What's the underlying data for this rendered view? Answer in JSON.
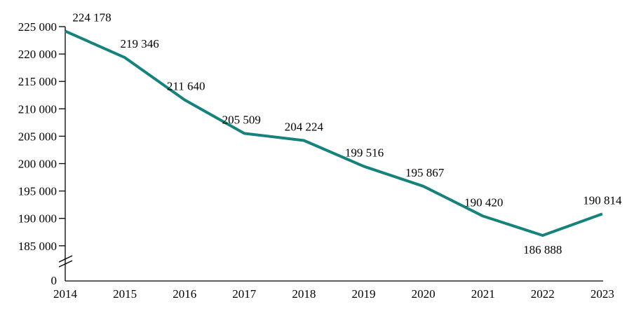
{
  "chart_data": {
    "type": "line",
    "title": "",
    "xlabel": "",
    "ylabel": "",
    "categories": [
      "2014",
      "2015",
      "2016",
      "2017",
      "2018",
      "2019",
      "2020",
      "2021",
      "2022",
      "2023"
    ],
    "values": [
      224178,
      219346,
      211640,
      205509,
      204224,
      199516,
      195867,
      190420,
      186888,
      190814
    ],
    "points": [
      {
        "x": "2014",
        "value": 224178,
        "label": "224 178",
        "label_pos": "above"
      },
      {
        "x": "2015",
        "value": 219346,
        "label": "219 346",
        "label_pos": "above"
      },
      {
        "x": "2016",
        "value": 211640,
        "label": "211 640",
        "label_pos": "above"
      },
      {
        "x": "2017",
        "value": 205509,
        "label": "205 509",
        "label_pos": "above"
      },
      {
        "x": "2018",
        "value": 204224,
        "label": "204 224",
        "label_pos": "above"
      },
      {
        "x": "2019",
        "value": 199516,
        "label": "199 516",
        "label_pos": "above"
      },
      {
        "x": "2020",
        "value": 195867,
        "label": "195 867",
        "label_pos": "above"
      },
      {
        "x": "2021",
        "value": 190420,
        "label": "190 420",
        "label_pos": "above"
      },
      {
        "x": "2022",
        "value": 186888,
        "label": "186 888",
        "label_pos": "below"
      },
      {
        "x": "2023",
        "value": 190814,
        "label": "190 814",
        "label_pos": "above"
      }
    ],
    "y_axis": {
      "ticks": [
        {
          "value": 225000,
          "label": "225 000"
        },
        {
          "value": 220000,
          "label": "220 000"
        },
        {
          "value": 215000,
          "label": "215 000"
        },
        {
          "value": 210000,
          "label": "210 000"
        },
        {
          "value": 205000,
          "label": "205 000"
        },
        {
          "value": 200000,
          "label": "200 000"
        },
        {
          "value": 195000,
          "label": "195 000"
        },
        {
          "value": 190000,
          "label": "190 000"
        },
        {
          "value": 185000,
          "label": "185 000"
        }
      ],
      "zero_label": "0",
      "axis_break": true
    },
    "ylim_visible": [
      185000,
      225000
    ],
    "tick_step": 5000,
    "grid": false,
    "legend": "none",
    "colors": {
      "line": "#17827b",
      "axis": "#000000",
      "text": "#000000",
      "background": "#ffffff"
    }
  }
}
